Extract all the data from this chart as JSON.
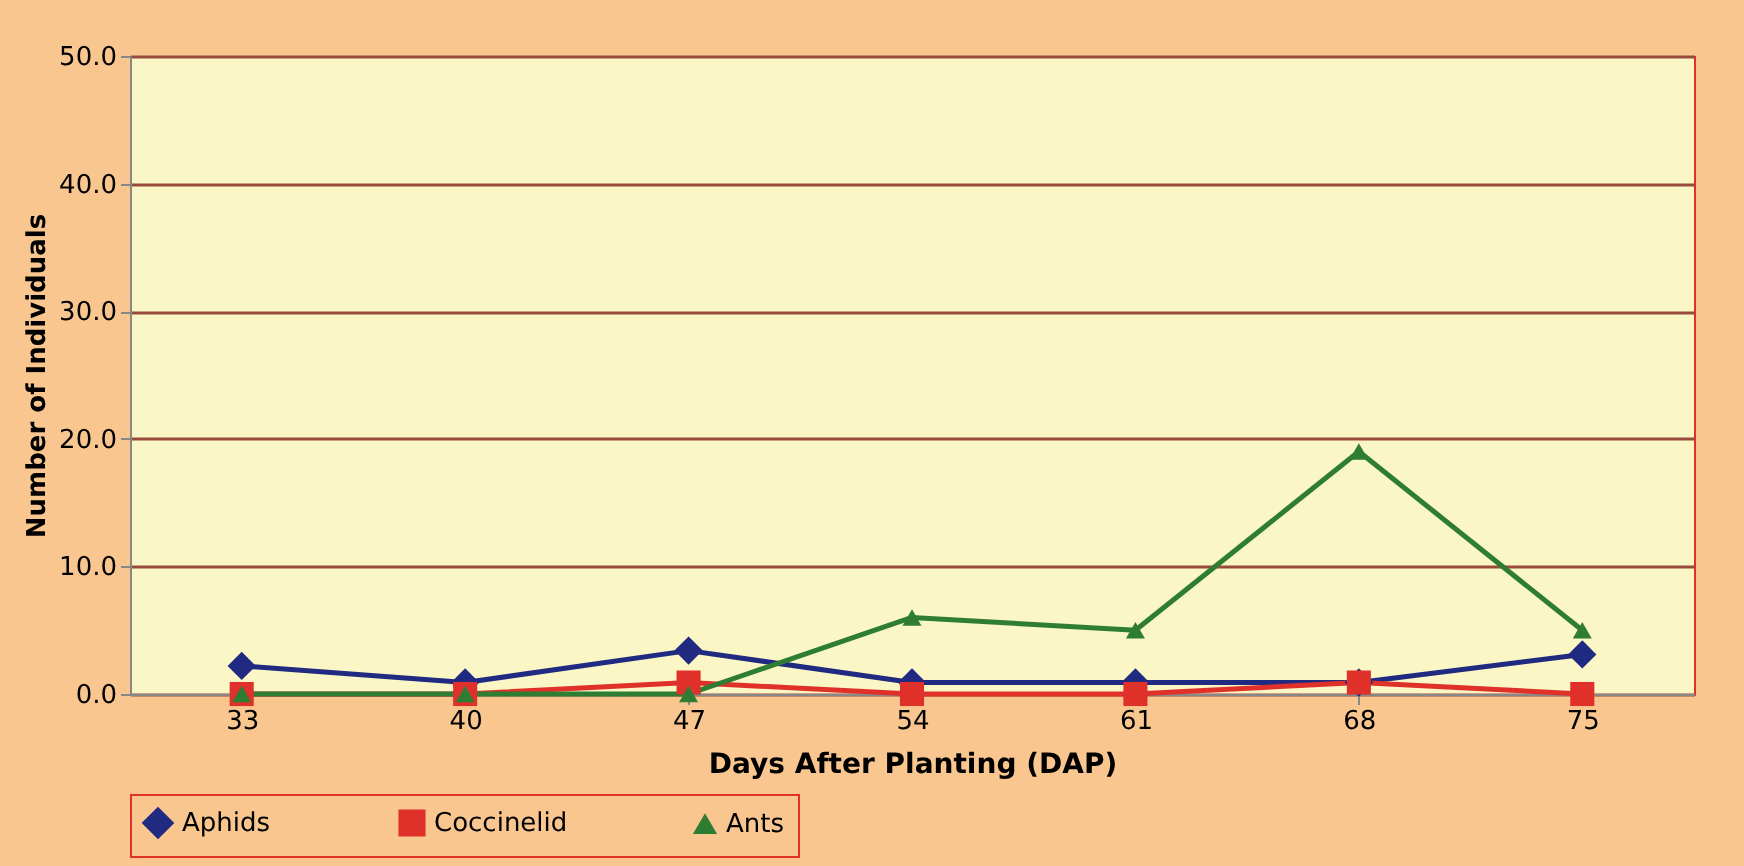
{
  "chart_data": {
    "type": "line",
    "xlabel": "Days After Planting (DAP)",
    "ylabel": "Number of Individuals",
    "categories": [
      "33",
      "40",
      "47",
      "54",
      "61",
      "68",
      "75"
    ],
    "series": [
      {
        "name": "Aphids",
        "color": "#1f2a80",
        "marker": "diamond",
        "values": [
          2.2,
          0.9,
          3.4,
          0.9,
          0.9,
          0.9,
          3.1
        ]
      },
      {
        "name": "Coccinelid",
        "color": "#e0302a",
        "marker": "square",
        "values": [
          0,
          0,
          0.9,
          0,
          0,
          0.9,
          0
        ]
      },
      {
        "name": "Ants",
        "color": "#2e7d32",
        "marker": "triangle",
        "values": [
          0,
          0,
          0,
          6,
          5,
          19,
          5
        ]
      }
    ],
    "ylim": [
      0,
      50
    ],
    "yticks": [
      {
        "value": 0,
        "label": "0.0"
      },
      {
        "value": 10,
        "label": "10.0"
      },
      {
        "value": 20,
        "label": "20.0"
      },
      {
        "value": 30,
        "label": "30.0"
      },
      {
        "value": 40,
        "label": "40.0"
      },
      {
        "value": 50,
        "label": "50.0"
      }
    ],
    "grid": "y",
    "legend": "bottom"
  }
}
